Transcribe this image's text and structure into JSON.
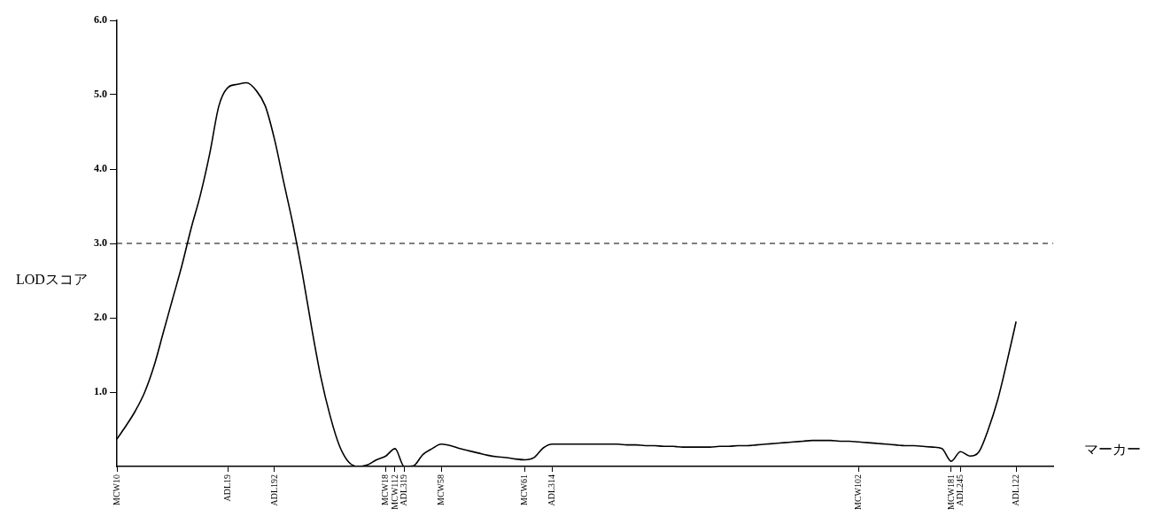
{
  "chart_data": {
    "type": "line",
    "xlabel": "マーカー",
    "ylabel": "LODスコア",
    "categories": [
      "MCW10",
      null,
      null,
      null,
      null,
      null,
      null,
      null,
      null,
      null,
      null,
      null,
      "ADL19",
      null,
      null,
      null,
      null,
      "ADL192",
      null,
      null,
      null,
      null,
      null,
      null,
      null,
      null,
      null,
      null,
      null,
      "MCW18",
      "MCW112",
      "ADL319",
      null,
      null,
      null,
      "MCW58",
      null,
      null,
      null,
      null,
      null,
      null,
      null,
      null,
      "MCW61",
      null,
      null,
      "ADL314",
      null,
      null,
      null,
      null,
      null,
      null,
      null,
      null,
      null,
      null,
      null,
      null,
      null,
      null,
      null,
      null,
      null,
      null,
      null,
      null,
      null,
      null,
      null,
      null,
      null,
      null,
      null,
      null,
      null,
      null,
      null,
      null,
      "MCW102",
      null,
      null,
      null,
      null,
      null,
      null,
      null,
      null,
      null,
      "MCW181",
      "ADL245",
      null,
      null,
      null,
      null,
      null,
      "ADL122",
      null,
      null,
      null,
      null
    ],
    "ylim": [
      0,
      6
    ],
    "yticks": [
      {
        "value": 1,
        "label": "1.0"
      },
      {
        "value": 2,
        "label": "2.0"
      },
      {
        "value": 3,
        "label": "3.0"
      },
      {
        "value": 4,
        "label": "4.0"
      },
      {
        "value": 5,
        "label": "5.0"
      },
      {
        "value": 6,
        "label": "6.0"
      }
    ],
    "series": [
      {
        "color": "#000000",
        "values": [
          0.37,
          0.55,
          0.75,
          1.0,
          1.35,
          1.8,
          2.25,
          2.7,
          3.2,
          3.65,
          4.2,
          4.85,
          5.1,
          5.14,
          5.16,
          5.06,
          4.85,
          4.4,
          3.82,
          3.25,
          2.6,
          1.87,
          1.2,
          0.68,
          0.28,
          0.06,
          0,
          0.02,
          0.09,
          0.14,
          0.24,
          0,
          0.01,
          0.16,
          0.24,
          0.3,
          0.28,
          0.24,
          0.21,
          0.18,
          0.15,
          0.13,
          0.12,
          0.1,
          0.09,
          0.12,
          0.25,
          0.3,
          0.3,
          0.3,
          0.3,
          0.3,
          0.3,
          0.3,
          0.3,
          0.29,
          0.29,
          0.28,
          0.28,
          0.27,
          0.27,
          0.26,
          0.26,
          0.26,
          0.26,
          0.27,
          0.27,
          0.28,
          0.28,
          0.29,
          0.3,
          0.31,
          0.32,
          0.33,
          0.34,
          0.35,
          0.35,
          0.35,
          0.34,
          0.34,
          0.33,
          0.32,
          0.31,
          0.3,
          0.29,
          0.28,
          0.28,
          0.27,
          0.26,
          0.24,
          0.07,
          0.2,
          0.14,
          0.2,
          0.5,
          0.89,
          1.4,
          1.95,
          null,
          null,
          null,
          null
        ]
      }
    ],
    "ref_lines": [
      {
        "axis": "y",
        "value": 3,
        "line_style": "dashed",
        "color": "#000000"
      }
    ],
    "grid": false,
    "legend": false,
    "marker": "none",
    "line_style": "solid"
  }
}
